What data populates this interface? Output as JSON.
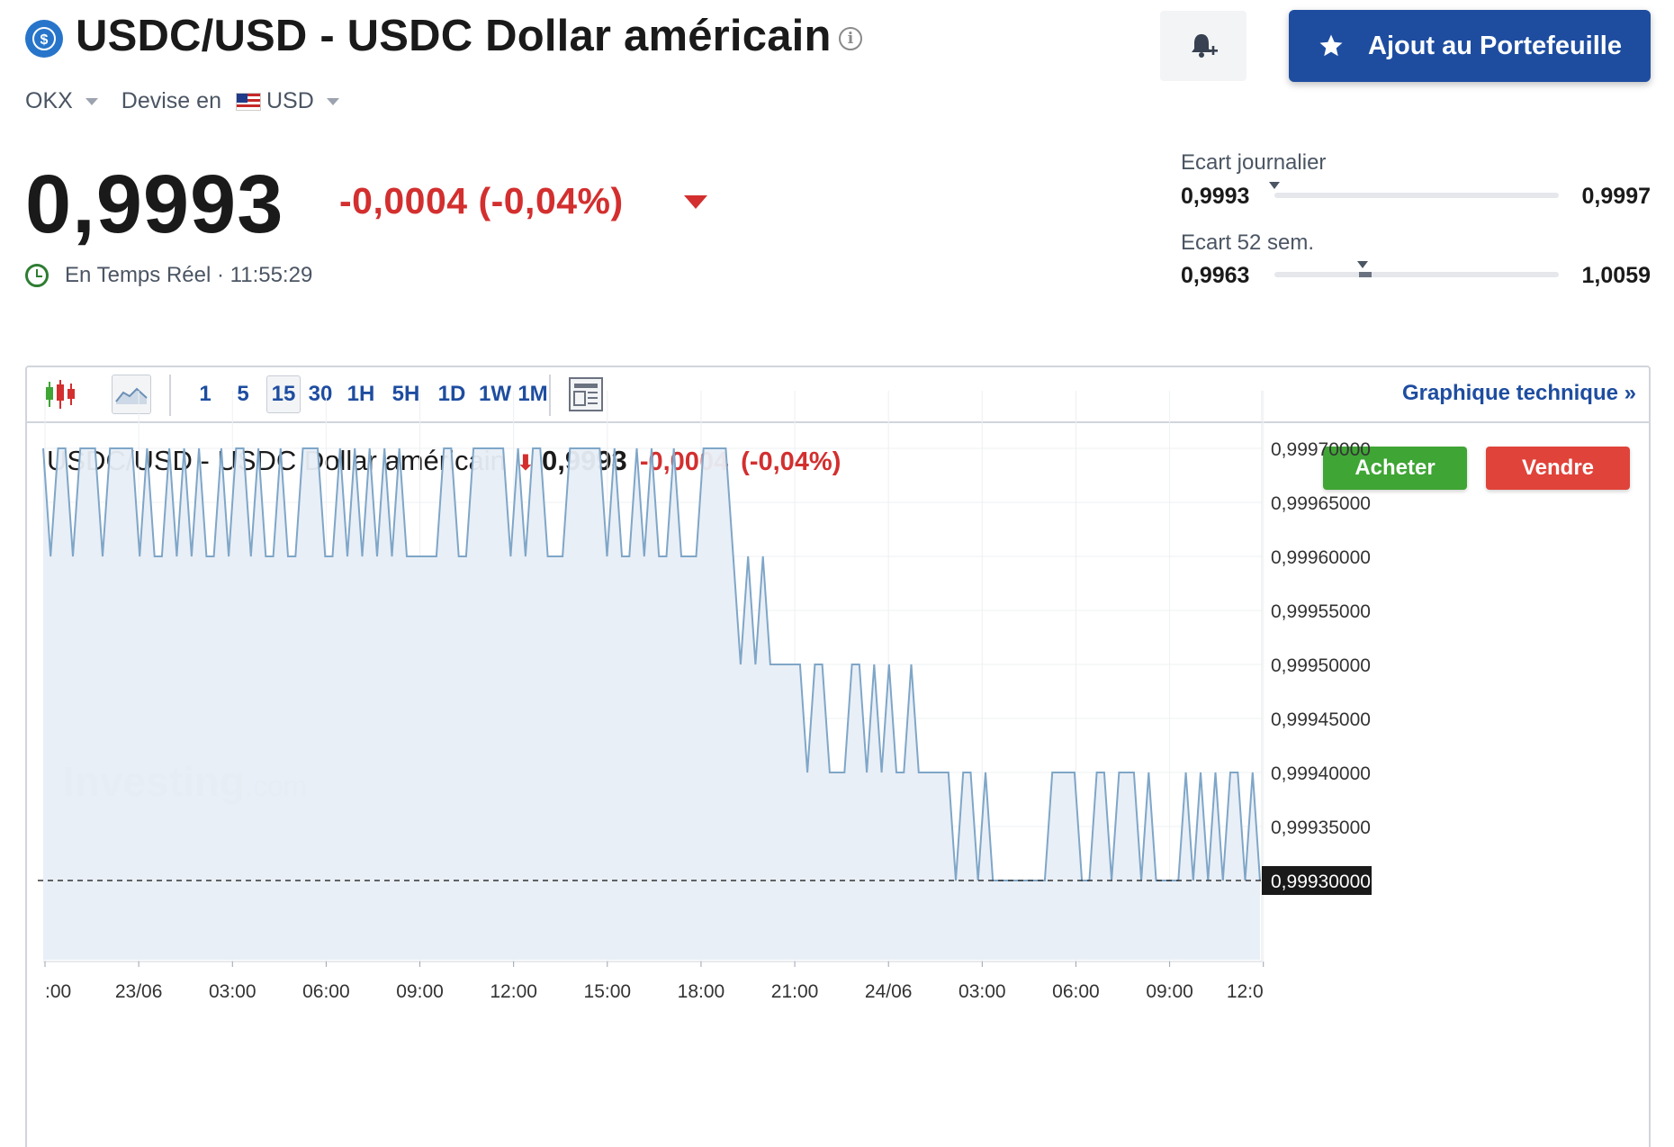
{
  "header": {
    "title": "USDC/USD - USDC Dollar américain",
    "alert_icon": "bell-plus-icon",
    "portfolio_button": "Ajout au Portefeuille",
    "exchange": "OKX",
    "currency_label": "Devise en",
    "currency": "USD"
  },
  "quote": {
    "price": "0,9993",
    "change": "-0,0004 (-0,04%)",
    "realtime_label": "En Temps Réel",
    "time": "11:55:29"
  },
  "ranges": {
    "daily": {
      "label": "Ecart journalier",
      "low": "0,9993",
      "high": "0,9997",
      "current_fraction": 0.0
    },
    "week52": {
      "label": "Ecart 52 sem.",
      "low": "0,9963",
      "high": "1,0059",
      "current_fraction": 0.31
    }
  },
  "chart_toolbar": {
    "timeframes": [
      "1",
      "5",
      "15",
      "30",
      "1H",
      "5H",
      "1D",
      "1W",
      "1M"
    ],
    "active_timeframe": "15",
    "technical_link": "Graphique technique »"
  },
  "instrument": {
    "name": "USDC/USD - USDC Dollar américain",
    "price": "0,9993",
    "change": "-0,0004",
    "change_pct": "(-0,04%)",
    "buy": "Acheter",
    "sell": "Vendre"
  },
  "colors": {
    "line": "#7fa6c8",
    "area": "#e8eef5",
    "up": "#3fa535",
    "down": "#d32f2f",
    "brand": "#1e4da0"
  },
  "chart_data": {
    "type": "area",
    "watermark": "Investing.com",
    "y_ticks": [
      "0,99970000",
      "0,99965000",
      "0,99960000",
      "0,99955000",
      "0,99950000",
      "0,99945000",
      "0,99940000",
      "0,99935000"
    ],
    "y_tick_values": [
      0.9997,
      0.99965,
      0.9996,
      0.99955,
      0.9995,
      0.99945,
      0.9994,
      0.99935
    ],
    "ylim": [
      0.99926,
      0.99972
    ],
    "last_value_label": "0,99930000",
    "last_value": 0.9993,
    "x_ticks": [
      ":00",
      "23/06",
      "03:00",
      "06:00",
      "09:00",
      "12:00",
      "15:00",
      "18:00",
      "21:00",
      "24/06",
      "03:00",
      "06:00",
      "09:00",
      "12:0"
    ],
    "series": [
      {
        "values": [
          0.9997,
          0.9996,
          0.9997,
          0.9997,
          0.9996,
          0.9997,
          0.9997,
          0.9997,
          0.9996,
          0.9997,
          0.9997,
          0.9997,
          0.9997,
          0.9996,
          0.9997,
          0.9996,
          0.9996,
          0.9997,
          0.9996,
          0.9997,
          0.9996,
          0.9997,
          0.9996,
          0.9996,
          0.9997,
          0.9996,
          0.9997,
          0.9997,
          0.9996,
          0.9997,
          0.9996,
          0.9996,
          0.9997,
          0.9996,
          0.9996,
          0.9997,
          0.9997,
          0.9997,
          0.9996,
          0.9996,
          0.9997,
          0.9996,
          0.9997,
          0.9996,
          0.9997,
          0.9996,
          0.9997,
          0.9996,
          0.9997,
          0.9996,
          0.9996,
          0.9996,
          0.9996,
          0.9996,
          0.9997,
          0.9997,
          0.9996,
          0.9996,
          0.9997,
          0.9997,
          0.9997,
          0.9997,
          0.9997,
          0.9996,
          0.9997,
          0.9996,
          0.9997,
          0.9997,
          0.9996,
          0.9996,
          0.9996,
          0.9997,
          0.9997,
          0.9997,
          0.9997,
          0.9997,
          0.9996,
          0.9997,
          0.9996,
          0.9996,
          0.9997,
          0.9996,
          0.9997,
          0.9996,
          0.9996,
          0.9997,
          0.9996,
          0.9996,
          0.9996,
          0.9997,
          0.9997,
          0.9997,
          0.9997,
          0.9996,
          0.9995,
          0.9996,
          0.9995,
          0.9996,
          0.9995,
          0.9995,
          0.9995,
          0.9995,
          0.9995,
          0.9994,
          0.9995,
          0.9995,
          0.9994,
          0.9994,
          0.9994,
          0.9995,
          0.9995,
          0.9994,
          0.9995,
          0.9994,
          0.9995,
          0.9994,
          0.9994,
          0.9995,
          0.9994,
          0.9994,
          0.9994,
          0.9994,
          0.9994,
          0.9993,
          0.9994,
          0.9994,
          0.9993,
          0.9994,
          0.9993,
          0.9993,
          0.9993,
          0.9993,
          0.9993,
          0.9993,
          0.9993,
          0.9993,
          0.9994,
          0.9994,
          0.9994,
          0.9994,
          0.9993,
          0.9993,
          0.9994,
          0.9994,
          0.9993,
          0.9994,
          0.9994,
          0.9994,
          0.9993,
          0.9994,
          0.9993,
          0.9993,
          0.9993,
          0.9993,
          0.9994,
          0.9993,
          0.9994,
          0.9993,
          0.9994,
          0.9993,
          0.9994,
          0.9994,
          0.9993,
          0.9994,
          0.9993
        ]
      }
    ]
  }
}
